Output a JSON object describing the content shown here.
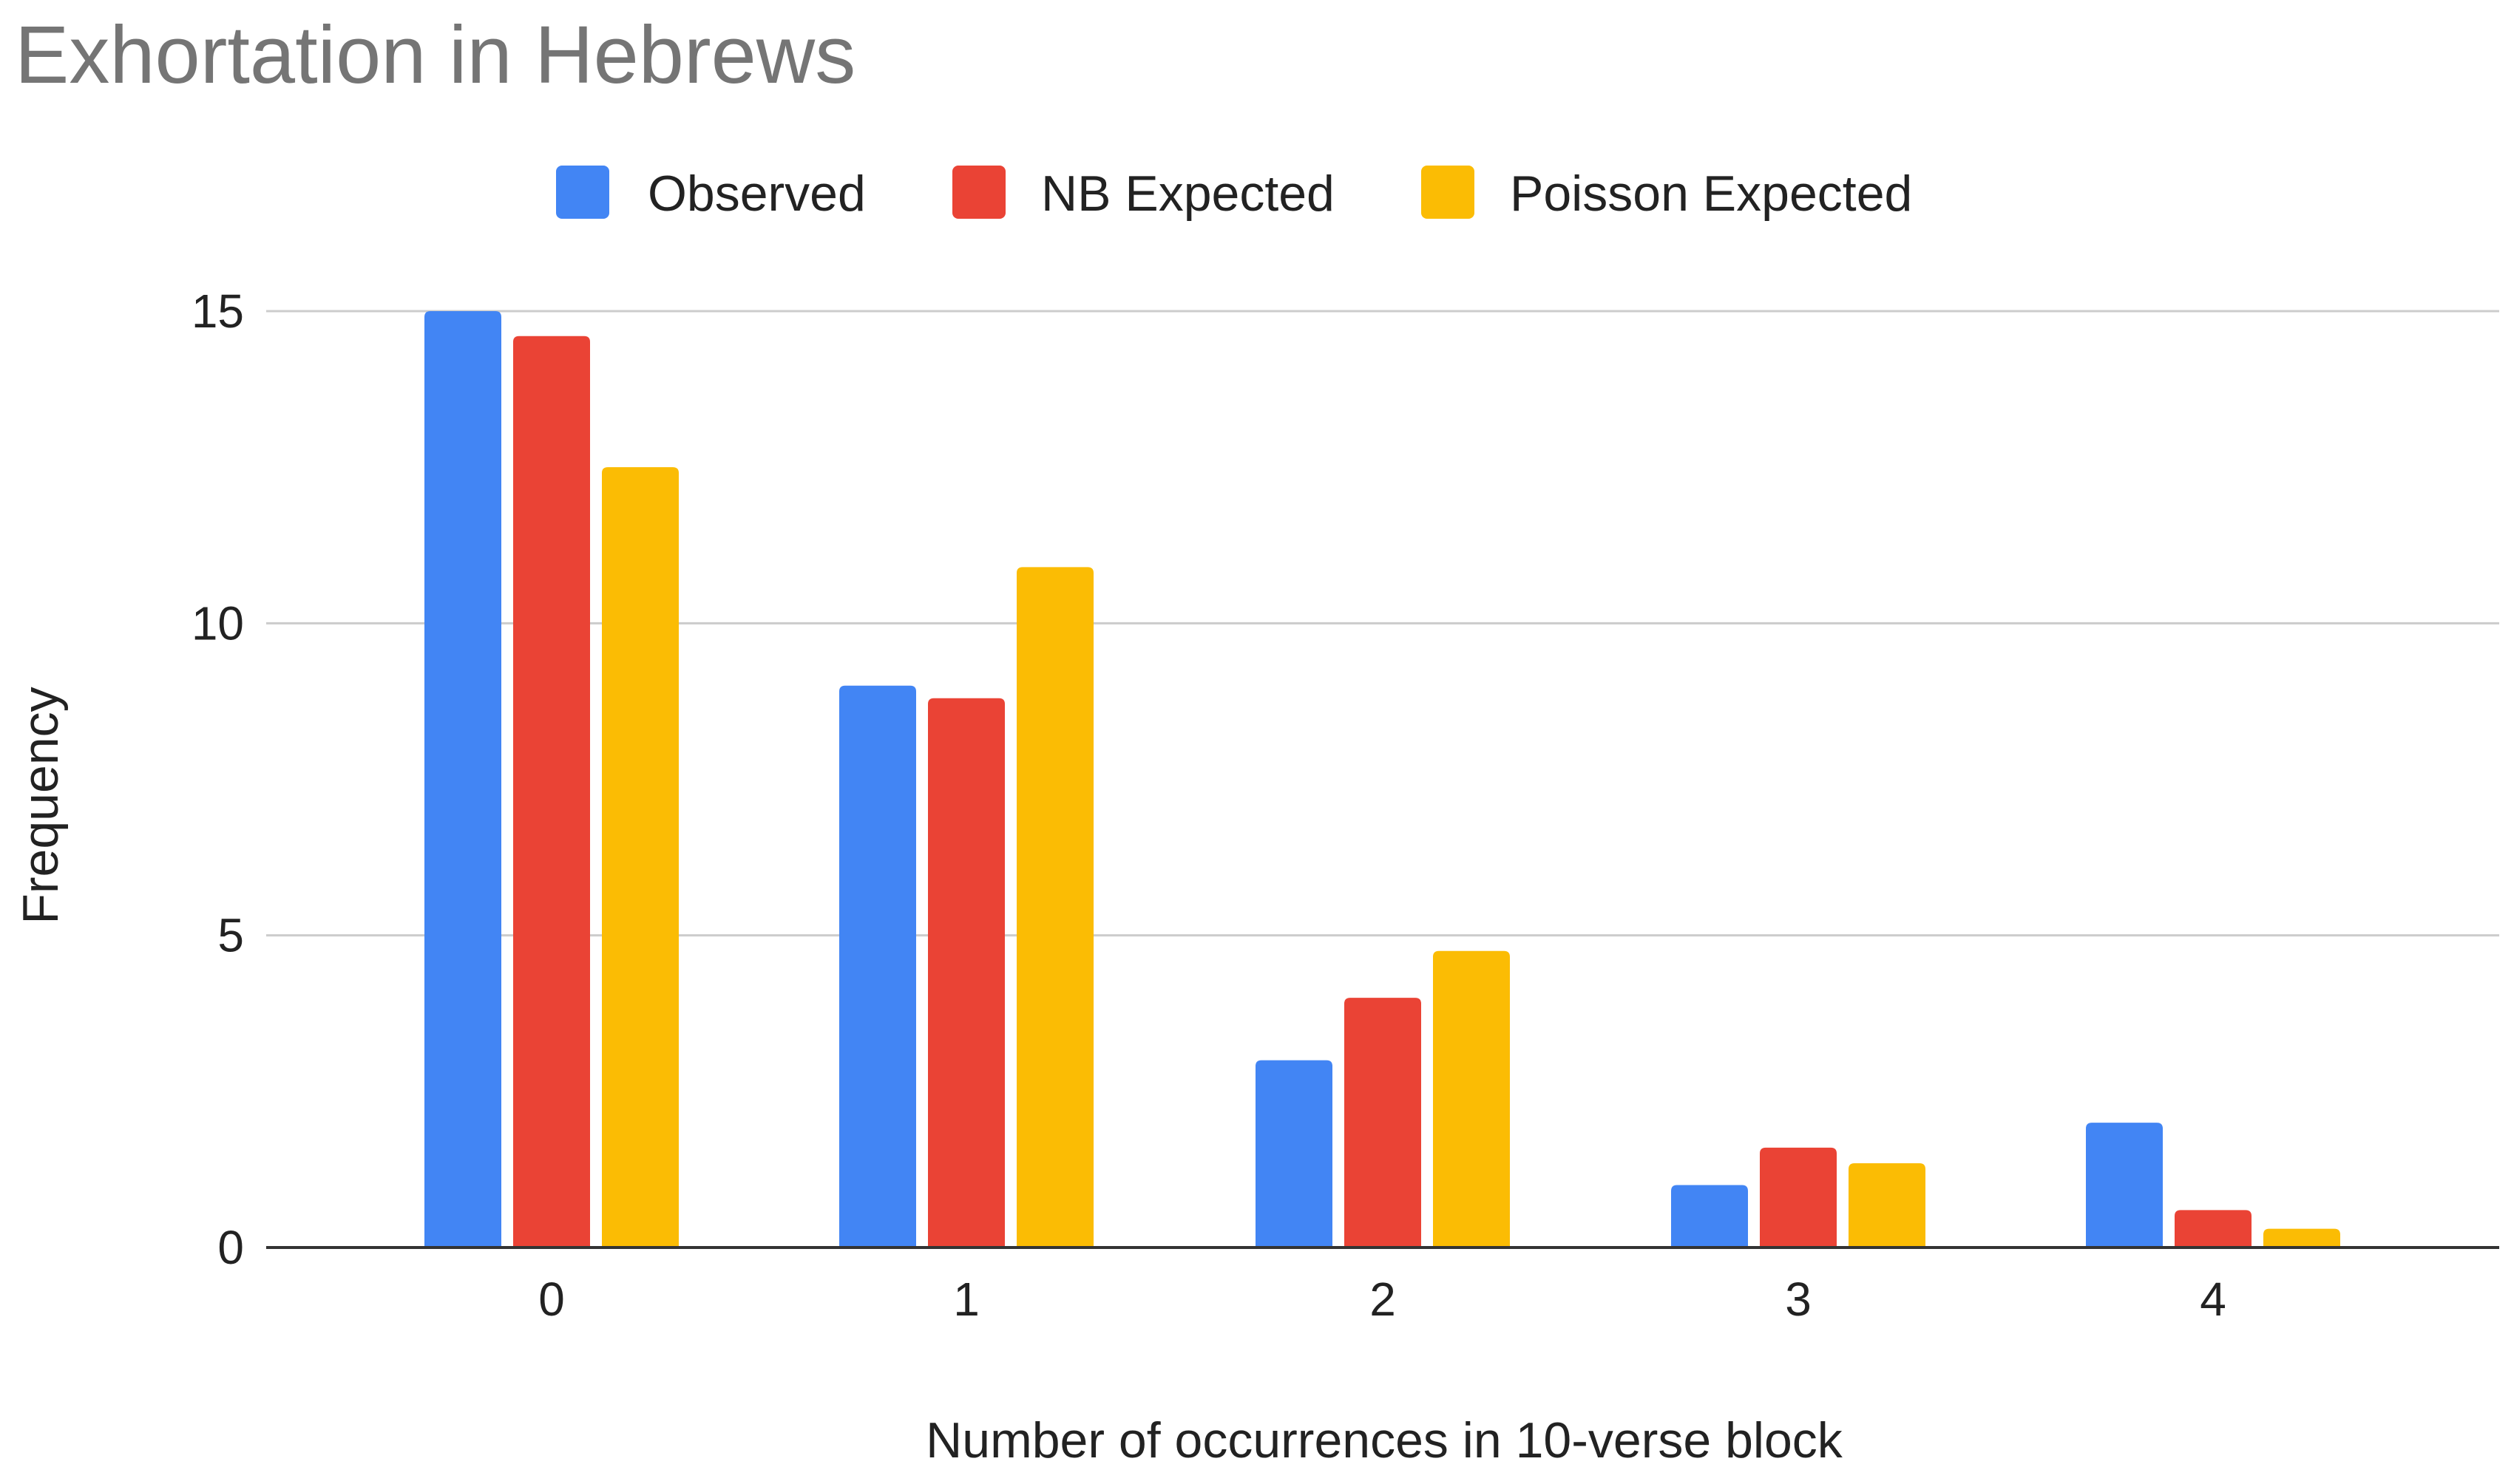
{
  "chart_data": {
    "type": "bar",
    "title": "Exhortation in Hebrews",
    "xlabel": "Number of occurrences in 10-verse block",
    "ylabel": "Frequency",
    "categories": [
      "0",
      "1",
      "2",
      "3",
      "4"
    ],
    "ylim": [
      0,
      15
    ],
    "yticks": [
      0,
      5,
      10,
      15
    ],
    "grid": true,
    "legend_position": "top",
    "series": [
      {
        "name": "Observed",
        "color": "#4285F4",
        "values": [
          15,
          9,
          3,
          1,
          2
        ]
      },
      {
        "name": "NB Expected",
        "color": "#EA4335",
        "values": [
          14.6,
          8.8,
          4.0,
          1.6,
          0.6
        ]
      },
      {
        "name": "Poisson Expected",
        "color": "#FBBC04",
        "values": [
          12.5,
          10.9,
          4.75,
          1.35,
          0.3
        ]
      }
    ]
  }
}
